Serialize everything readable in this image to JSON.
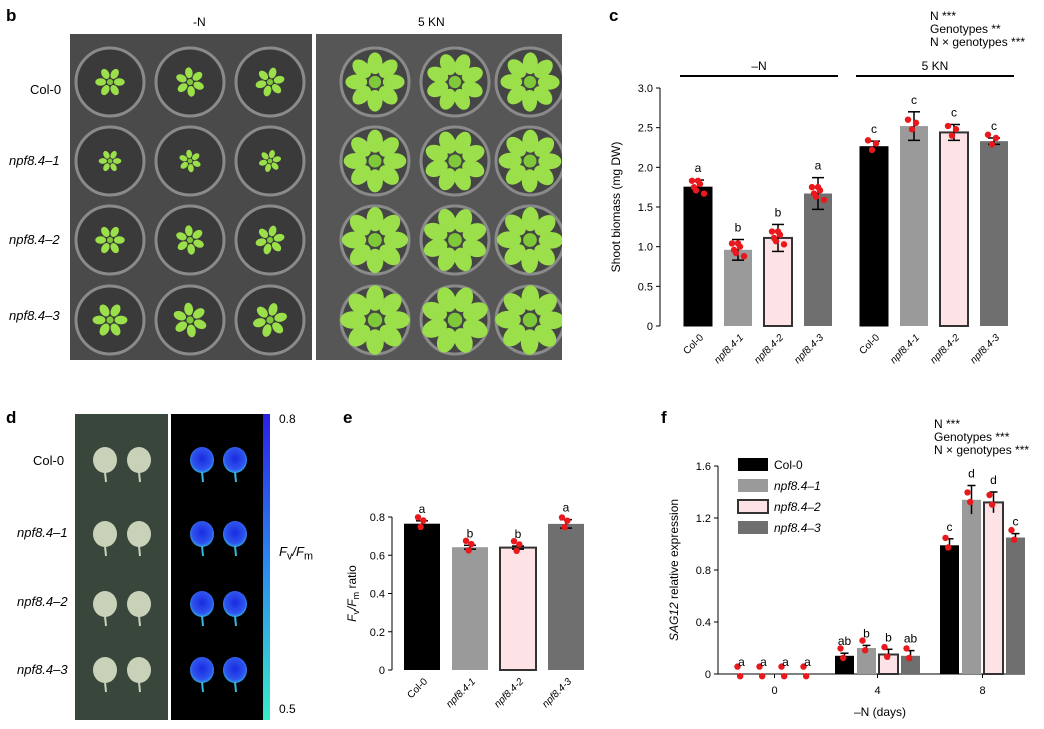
{
  "colors": {
    "colcol": "#000000",
    "npf1": "#9a9a9a",
    "npf2": "#fde3e5",
    "npf3": "#6f6f6f",
    "dot": "#e8181c",
    "plant": "#9be04a",
    "fluor_high": "#1f25e6",
    "fluor_low": "#38ead0"
  },
  "panel_b": {
    "letter": "b",
    "cond_left": "-N",
    "cond_right": "5 KN",
    "row_labels": [
      "Col-0",
      "npf8.4–1",
      "npf8.4–2",
      "npf8.4–3"
    ]
  },
  "panel_d": {
    "letter": "d",
    "row_labels": [
      "Col-0",
      "npf8.4–1",
      "npf8.4–2",
      "npf8.4–3"
    ],
    "scale_max": "0.8",
    "scale_min": "0.5",
    "scale_label_main": "F",
    "scale_label_sub1": "v",
    "scale_label_sep": "/F",
    "scale_label_sub2": "m"
  },
  "chart_data": [
    {
      "id": "c",
      "letter": "c",
      "type": "bar",
      "ylabel": "Shoot biomass (mg DW)",
      "ylim": [
        0,
        3.0
      ],
      "yticks": [
        "0",
        "0.5",
        "1.0",
        "1.5",
        "2.0",
        "2.5",
        "3.0"
      ],
      "yticks_values": [
        0,
        0.5,
        1.0,
        1.5,
        2.0,
        2.5,
        3.0
      ],
      "groups": [
        "–N",
        "5 KN"
      ],
      "categories": [
        "Col-0",
        "npf8.4-1",
        "npf8.4-2",
        "npf8.4-3",
        "Col-0",
        "npf8.4-1",
        "npf8.4-2",
        "npf8.4-3"
      ],
      "values": [
        1.75,
        0.96,
        1.11,
        1.67,
        2.26,
        2.52,
        2.44,
        2.33
      ],
      "errors": [
        0.09,
        0.13,
        0.17,
        0.2,
        0.07,
        0.18,
        0.1,
        0.04
      ],
      "letters": [
        "a",
        "b",
        "b",
        "a",
        "c",
        "c",
        "c",
        "c"
      ],
      "stats": [
        "N ***",
        "Genotypes **",
        "N × genotypes ***"
      ]
    },
    {
      "id": "e",
      "letter": "e",
      "type": "bar",
      "ylabel_main": "F",
      "ylabel_sub1": "v",
      "ylabel_sep": "/F",
      "ylabel_sub2": "m",
      "ylabel_tail": " ratio",
      "ylim": [
        0,
        0.8
      ],
      "yticks": [
        "0",
        "0.2",
        "0.4",
        "0.6",
        "0.8"
      ],
      "yticks_values": [
        0,
        0.2,
        0.4,
        0.6,
        0.8
      ],
      "categories": [
        "Col-0",
        "npf8.4-1",
        "npf8.4-2",
        "npf8.4-3"
      ],
      "values": [
        0.765,
        0.642,
        0.64,
        0.764
      ],
      "errors": [
        0.015,
        0.01,
        0.008,
        0.022
      ],
      "letters": [
        "a",
        "b",
        "b",
        "a"
      ]
    },
    {
      "id": "f",
      "letter": "f",
      "type": "bar",
      "ylabel_gene": "SAG12",
      "ylabel_tail": " relative expression",
      "xlabel": "–N (days)",
      "ylim": [
        0,
        1.6
      ],
      "yticks": [
        "0",
        "0.4",
        "0.8",
        "1.2",
        "1.6"
      ],
      "yticks_values": [
        0,
        0.4,
        0.8,
        1.2,
        1.6
      ],
      "categories": [
        "0",
        "4",
        "8"
      ],
      "series": [
        {
          "name": "Col-0",
          "values": [
            0.0,
            0.14,
            0.99
          ],
          "errors": [
            0.0,
            0.02,
            0.05
          ],
          "letters": [
            "a",
            "ab",
            "c"
          ]
        },
        {
          "name": "npf8.4–1",
          "values": [
            0.0,
            0.2,
            1.34
          ],
          "errors": [
            0.0,
            0.02,
            0.11
          ],
          "letters": [
            "a",
            "b",
            "d"
          ]
        },
        {
          "name": "npf8.4–2",
          "values": [
            0.0,
            0.15,
            1.32
          ],
          "errors": [
            0.0,
            0.04,
            0.08
          ],
          "letters": [
            "a",
            "b",
            "d"
          ]
        },
        {
          "name": "npf8.4–3",
          "values": [
            0.0,
            0.14,
            1.05
          ],
          "errors": [
            0.0,
            0.04,
            0.03
          ],
          "letters": [
            "a",
            "ab",
            "c"
          ]
        }
      ],
      "stats": [
        "N ***",
        "Genotypes ***",
        "N × genotypes ***"
      ]
    }
  ]
}
